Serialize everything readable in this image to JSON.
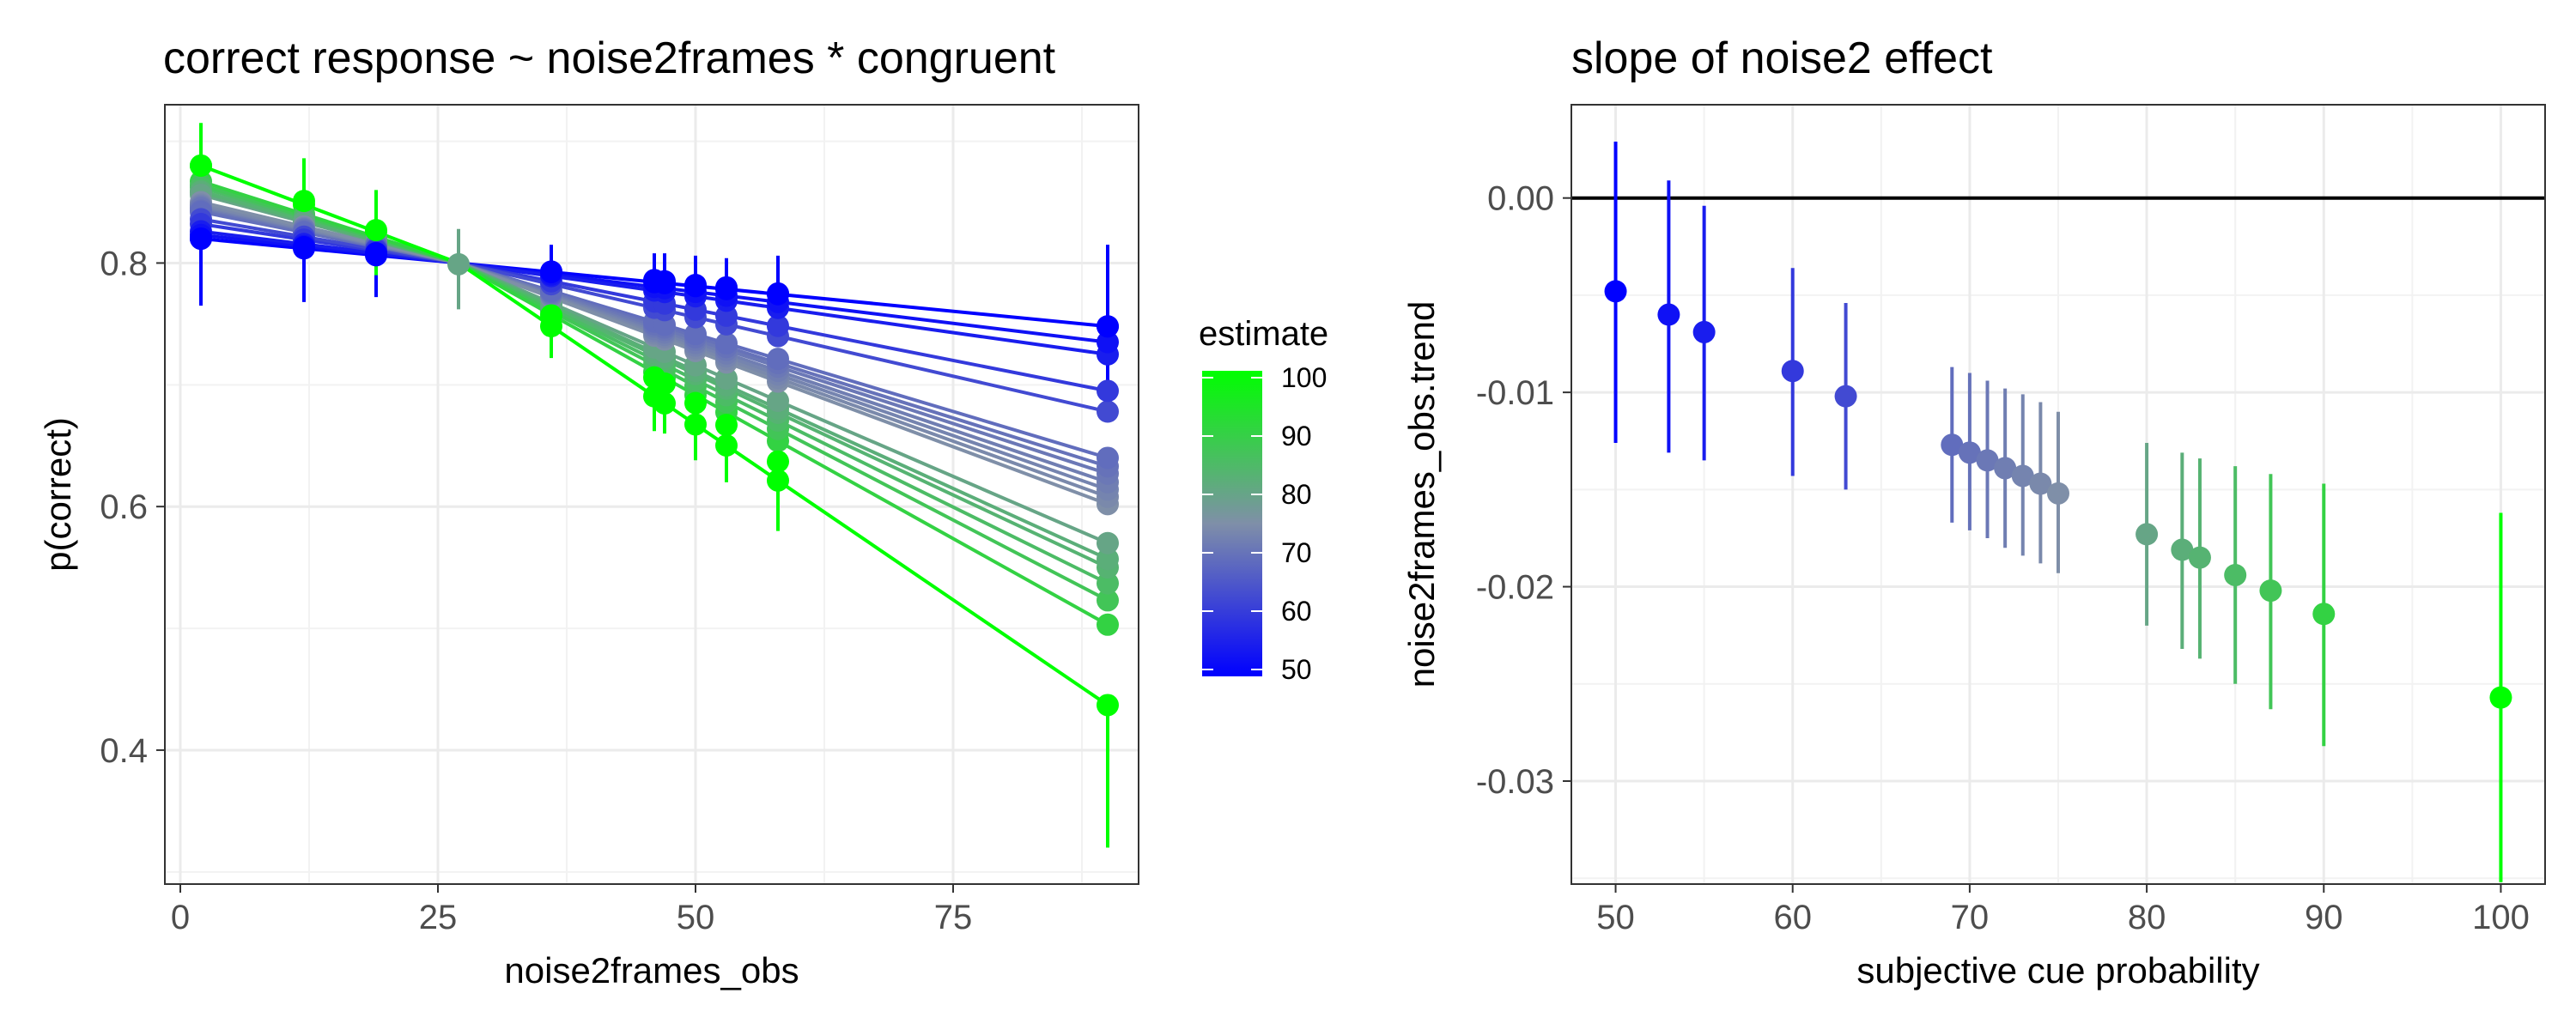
{
  "chart_data": [
    {
      "type": "line",
      "title": "correct response ~ noise2frames * congruent",
      "xlabel": "noise2frames_obs",
      "ylabel": "p(correct)",
      "xlim": [
        -1.5,
        93
      ],
      "ylim": [
        0.29,
        0.93
      ],
      "xticks": [
        0,
        25,
        50,
        75
      ],
      "yticks": [
        0.4,
        0.6,
        0.8
      ],
      "grid": true,
      "pivot": {
        "x": 27,
        "y": 0.8
      },
      "x_left": 2,
      "x_right": 90,
      "series": [
        {
          "estimate": 50,
          "y_left": 0.82,
          "y_right": 0.748
        },
        {
          "estimate": 53,
          "y_left": 0.823,
          "y_right": 0.735
        },
        {
          "estimate": 55,
          "y_left": 0.826,
          "y_right": 0.725
        },
        {
          "estimate": 60,
          "y_left": 0.832,
          "y_right": 0.695
        },
        {
          "estimate": 63,
          "y_left": 0.836,
          "y_right": 0.678
        },
        {
          "estimate": 69,
          "y_left": 0.842,
          "y_right": 0.64
        },
        {
          "estimate": 70,
          "y_left": 0.843,
          "y_right": 0.633
        },
        {
          "estimate": 71,
          "y_left": 0.845,
          "y_right": 0.627
        },
        {
          "estimate": 72,
          "y_left": 0.846,
          "y_right": 0.62
        },
        {
          "estimate": 73,
          "y_left": 0.847,
          "y_right": 0.614
        },
        {
          "estimate": 74,
          "y_left": 0.848,
          "y_right": 0.608
        },
        {
          "estimate": 75,
          "y_left": 0.85,
          "y_right": 0.602
        },
        {
          "estimate": 80,
          "y_left": 0.856,
          "y_right": 0.57
        },
        {
          "estimate": 82,
          "y_left": 0.858,
          "y_right": 0.557
        },
        {
          "estimate": 83,
          "y_left": 0.859,
          "y_right": 0.55
        },
        {
          "estimate": 85,
          "y_left": 0.862,
          "y_right": 0.537
        },
        {
          "estimate": 87,
          "y_left": 0.864,
          "y_right": 0.523
        },
        {
          "estimate": 90,
          "y_left": 0.867,
          "y_right": 0.503
        },
        {
          "estimate": 100,
          "y_left": 0.88,
          "y_right": 0.437
        }
      ],
      "observed": [
        {
          "x": 2,
          "y": 0.82,
          "lo": 0.765,
          "hi": 0.865,
          "estimate": 50
        },
        {
          "x": 12,
          "y": 0.813,
          "lo": 0.768,
          "hi": 0.852,
          "estimate": 50
        },
        {
          "x": 19,
          "y": 0.808,
          "lo": 0.772,
          "hi": 0.845,
          "estimate": 50
        },
        {
          "x": 36,
          "y": 0.793,
          "lo": 0.77,
          "hi": 0.815,
          "estimate": 50
        },
        {
          "x": 46,
          "y": 0.786,
          "lo": 0.762,
          "hi": 0.808,
          "estimate": 50
        },
        {
          "x": 47,
          "y": 0.785,
          "lo": 0.76,
          "hi": 0.808,
          "estimate": 50
        },
        {
          "x": 50,
          "y": 0.782,
          "lo": 0.758,
          "hi": 0.806,
          "estimate": 50
        },
        {
          "x": 53,
          "y": 0.78,
          "lo": 0.755,
          "hi": 0.804,
          "estimate": 50
        },
        {
          "x": 58,
          "y": 0.775,
          "lo": 0.748,
          "hi": 0.806,
          "estimate": 50
        },
        {
          "x": 90,
          "y": 0.748,
          "lo": 0.69,
          "hi": 0.815,
          "estimate": 50
        },
        {
          "x": 2,
          "y": 0.88,
          "lo": 0.855,
          "hi": 0.915,
          "estimate": 100
        },
        {
          "x": 12,
          "y": 0.851,
          "lo": 0.815,
          "hi": 0.886,
          "estimate": 100
        },
        {
          "x": 19,
          "y": 0.827,
          "lo": 0.79,
          "hi": 0.86,
          "estimate": 100
        },
        {
          "x": 27,
          "y": 0.799,
          "lo": 0.762,
          "hi": 0.828,
          "estimate": 80
        },
        {
          "x": 36,
          "y": 0.757,
          "lo": 0.722,
          "hi": 0.79,
          "estimate": 100
        },
        {
          "x": 46,
          "y": 0.706,
          "lo": 0.662,
          "hi": 0.748,
          "estimate": 100
        },
        {
          "x": 47,
          "y": 0.701,
          "lo": 0.66,
          "hi": 0.742,
          "estimate": 100
        },
        {
          "x": 50,
          "y": 0.685,
          "lo": 0.638,
          "hi": 0.728,
          "estimate": 100
        },
        {
          "x": 53,
          "y": 0.667,
          "lo": 0.62,
          "hi": 0.712,
          "estimate": 100
        },
        {
          "x": 58,
          "y": 0.637,
          "lo": 0.58,
          "hi": 0.69,
          "estimate": 100
        }
      ],
      "lower_err_x90": 0.32
    },
    {
      "type": "scatter",
      "title": "slope of noise2 effect",
      "xlabel": "subjective cue probability",
      "ylabel": "noise2frames_obs.trend",
      "xlim": [
        47.5,
        102.5
      ],
      "ylim": [
        -0.0353,
        0.0048
      ],
      "xticks": [
        50,
        60,
        70,
        80,
        90,
        100
      ],
      "yticks": [
        0.0,
        -0.01,
        -0.02,
        -0.03
      ],
      "ytick_labels": [
        "0.00",
        "-0.01",
        "-0.02",
        "-0.03"
      ],
      "hline": 0,
      "grid": true,
      "points": [
        {
          "x": 50,
          "y": -0.0048,
          "lo": -0.0126,
          "hi": 0.0029
        },
        {
          "x": 53,
          "y": -0.006,
          "lo": -0.0131,
          "hi": 0.0009
        },
        {
          "x": 55,
          "y": -0.0069,
          "lo": -0.0135,
          "hi": -0.0004
        },
        {
          "x": 60,
          "y": -0.0089,
          "lo": -0.0143,
          "hi": -0.0036
        },
        {
          "x": 63,
          "y": -0.0102,
          "lo": -0.015,
          "hi": -0.0054
        },
        {
          "x": 69,
          "y": -0.0127,
          "lo": -0.0167,
          "hi": -0.0087
        },
        {
          "x": 70,
          "y": -0.0131,
          "lo": -0.0171,
          "hi": -0.009
        },
        {
          "x": 71,
          "y": -0.0135,
          "lo": -0.0175,
          "hi": -0.0094
        },
        {
          "x": 72,
          "y": -0.0139,
          "lo": -0.018,
          "hi": -0.0098
        },
        {
          "x": 73,
          "y": -0.0143,
          "lo": -0.0184,
          "hi": -0.0101
        },
        {
          "x": 74,
          "y": -0.0147,
          "lo": -0.0188,
          "hi": -0.0105
        },
        {
          "x": 75,
          "y": -0.0152,
          "lo": -0.0193,
          "hi": -0.011
        },
        {
          "x": 80,
          "y": -0.0173,
          "lo": -0.022,
          "hi": -0.0126
        },
        {
          "x": 82,
          "y": -0.0181,
          "lo": -0.0232,
          "hi": -0.0131
        },
        {
          "x": 83,
          "y": -0.0185,
          "lo": -0.0237,
          "hi": -0.0134
        },
        {
          "x": 85,
          "y": -0.0194,
          "lo": -0.025,
          "hi": -0.0138
        },
        {
          "x": 87,
          "y": -0.0202,
          "lo": -0.0263,
          "hi": -0.0142
        },
        {
          "x": 90,
          "y": -0.0214,
          "lo": -0.0282,
          "hi": -0.0147
        },
        {
          "x": 100,
          "y": -0.0257,
          "lo": -0.0352,
          "hi": -0.0162
        }
      ]
    }
  ],
  "legend": {
    "title": "estimate",
    "ticks": [
      "100",
      "90",
      "80",
      "70",
      "60",
      "50"
    ],
    "range": [
      50,
      100
    ],
    "color_low": "#0000ff",
    "color_mid": "#7f8fa8",
    "color_high": "#00ff00"
  }
}
